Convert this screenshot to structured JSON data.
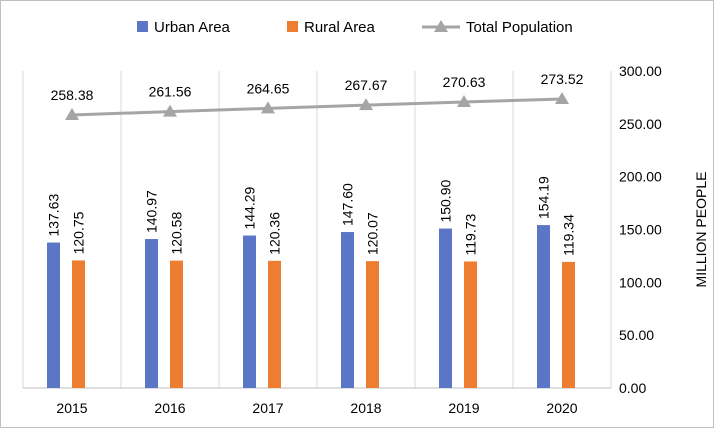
{
  "chart_data": {
    "type": "bar+line",
    "title": "",
    "categories": [
      "2015",
      "2016",
      "2017",
      "2018",
      "2019",
      "2020"
    ],
    "series": [
      {
        "name": "Urban Area",
        "type": "bar",
        "color": "#5b76c7",
        "values": [
          137.63,
          140.97,
          144.29,
          147.6,
          150.9,
          154.19
        ],
        "labels": [
          "137.63",
          "140.97",
          "144.29",
          "147.60",
          "150.90",
          "154.19"
        ]
      },
      {
        "name": "Rural Area",
        "type": "bar",
        "color": "#ed7d31",
        "values": [
          120.75,
          120.58,
          120.36,
          120.07,
          119.73,
          119.34
        ],
        "labels": [
          "120.75",
          "120.58",
          "120.36",
          "120.07",
          "119.73",
          "119.34"
        ]
      },
      {
        "name": "Total Population",
        "type": "line",
        "marker": "triangle",
        "color": "#a5a5a5",
        "values": [
          258.38,
          261.56,
          264.65,
          267.67,
          270.63,
          273.52
        ],
        "labels": [
          "258.38",
          "261.56",
          "264.65",
          "267.67",
          "270.63",
          "273.52"
        ]
      }
    ],
    "ylabel": "MILLION PEOPLE",
    "ylim": [
      0,
      300
    ],
    "yticks": [
      0,
      50,
      100,
      150,
      200,
      250,
      300
    ],
    "ytick_labels": [
      "0.00",
      "50.00",
      "100.00",
      "150.00",
      "200.00",
      "250.00",
      "300.00"
    ],
    "y_axis_side": "right",
    "grid": "vertical category separators",
    "legend": {
      "position": "top",
      "items": [
        "Urban Area",
        "Rural Area",
        "Total Population"
      ]
    }
  }
}
